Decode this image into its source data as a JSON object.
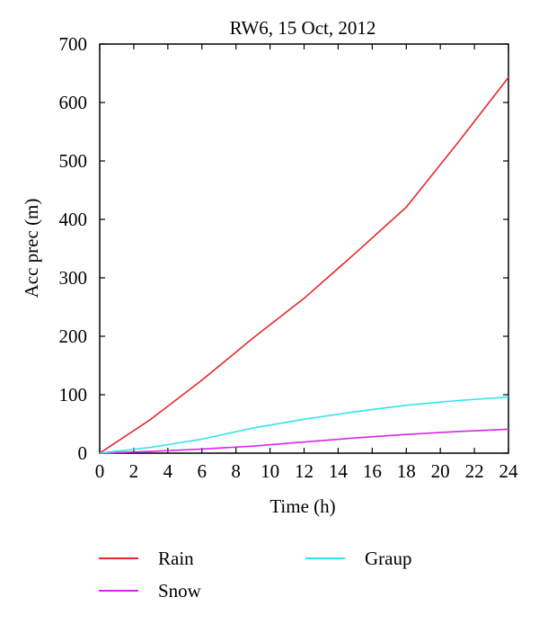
{
  "chart_data": {
    "type": "line",
    "title": "RW6, 15 Oct, 2012",
    "xlabel": "Time (h)",
    "ylabel": "Acc prec (m)",
    "xlim": [
      0,
      24
    ],
    "ylim": [
      0,
      700
    ],
    "xticks": [
      0,
      2,
      4,
      6,
      8,
      10,
      12,
      14,
      16,
      18,
      20,
      22,
      24
    ],
    "yticks": [
      0,
      100,
      200,
      300,
      400,
      500,
      600,
      700
    ],
    "grid": false,
    "legend_position": "bottom",
    "series": [
      {
        "name": "Rain",
        "color": "#e8262b",
        "x": [
          0,
          3,
          6,
          9,
          12,
          15,
          18,
          21,
          24
        ],
        "y": [
          0,
          58,
          125,
          197,
          265,
          342,
          421,
          530,
          643
        ]
      },
      {
        "name": "Snow",
        "color": "#d628e8",
        "x": [
          0,
          3,
          6,
          9,
          12,
          15,
          18,
          21,
          24
        ],
        "y": [
          0,
          3,
          7,
          12,
          19,
          26,
          32,
          37,
          41
        ]
      },
      {
        "name": "Graup",
        "color": "#2ee6e6",
        "x": [
          0,
          3,
          6,
          9,
          12,
          15,
          18,
          21,
          24
        ],
        "y": [
          0,
          10,
          24,
          43,
          58,
          71,
          82,
          90,
          96
        ]
      }
    ]
  }
}
